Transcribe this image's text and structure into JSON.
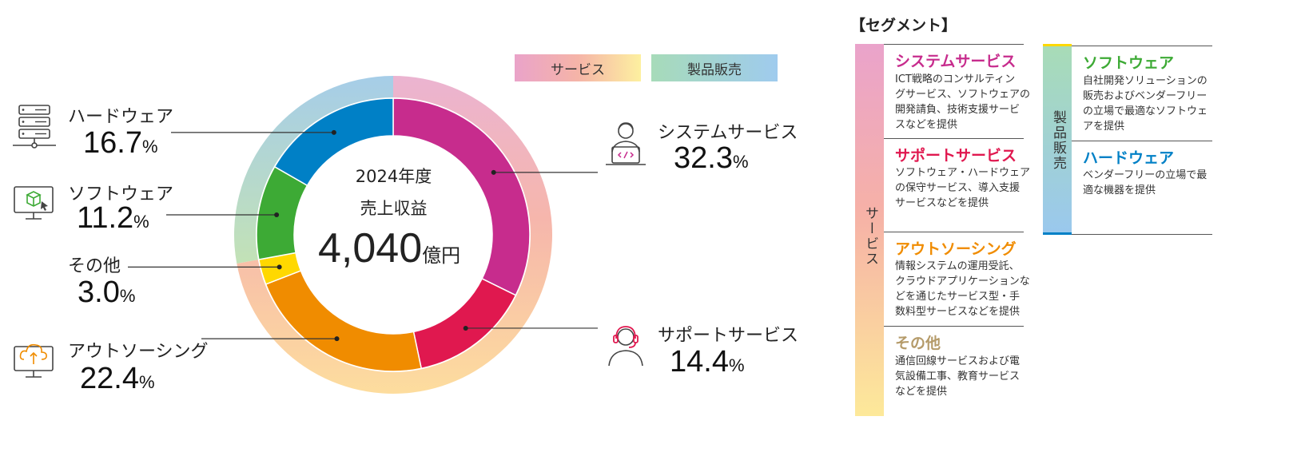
{
  "colors": {
    "system": "#c72c8d",
    "support": "#e0184f",
    "outsourcing": "#f08c00",
    "other": "#ffd800",
    "software": "#3daa35",
    "hardware": "#0080c6",
    "title_system": "#c72c8d",
    "title_support": "#e0184f",
    "title_outsourcing": "#f08c00",
    "title_other": "#b59b6a",
    "title_software": "#3daa35",
    "title_hardware": "#0080c6"
  },
  "center": {
    "year": "2024年度",
    "label": "売上収益",
    "amount": "4,040",
    "unit": "億円"
  },
  "legend": {
    "service": "サービス",
    "product": "製品販売"
  },
  "chart_data": {
    "type": "pie",
    "title": "2024年度 売上収益 4,040億円",
    "unit": "%",
    "slices": [
      {
        "name": "システムサービス",
        "value": 32.3,
        "group": "サービス"
      },
      {
        "name": "サポートサービス",
        "value": 14.4,
        "group": "サービス"
      },
      {
        "name": "アウトソーシング",
        "value": 22.4,
        "group": "サービス"
      },
      {
        "name": "その他",
        "value": 3.0,
        "group": "サービス"
      },
      {
        "name": "ソフトウェア",
        "value": 11.2,
        "group": "製品販売"
      },
      {
        "name": "ハードウェア",
        "value": 16.7,
        "group": "製品販売"
      }
    ],
    "groups": [
      {
        "name": "サービス",
        "value": 72.1
      },
      {
        "name": "製品販売",
        "value": 27.9
      }
    ]
  },
  "labels": {
    "system": {
      "name": "システムサービス",
      "value": "32.3",
      "unit": "%"
    },
    "support": {
      "name": "サポートサービス",
      "value": "14.4",
      "unit": "%"
    },
    "outsourcing": {
      "name": "アウトソーシング",
      "value": "22.4",
      "unit": "%"
    },
    "other": {
      "name": "その他",
      "value": "3.0",
      "unit": "%"
    },
    "software": {
      "name": "ソフトウェア",
      "value": "11.2",
      "unit": "%"
    },
    "hardware": {
      "name": "ハードウェア",
      "value": "16.7",
      "unit": "%"
    }
  },
  "segments": {
    "heading": "【セグメント】",
    "service_label": "サービス",
    "product_label": "製品販売",
    "service_items": [
      {
        "title": "システムサービス",
        "desc": [
          "ICT戦略のコンサルティン",
          "グサービス、ソフトウェアの",
          "開発請負、技術支援サービ",
          "スなどを提供"
        ]
      },
      {
        "title": "サポートサービス",
        "desc": [
          "ソフトウェア・ハードウェア",
          "の保守サービス、導入支援",
          "サービスなどを提供"
        ]
      },
      {
        "title": "アウトソーシング",
        "desc": [
          "情報システムの運用受託、",
          "クラウドアプリケーションな",
          "どを通じたサービス型・手",
          "数料型サービスなどを提供"
        ]
      },
      {
        "title": "その他",
        "desc": [
          "通信回線サービスおよび電",
          "気設備工事、教育サービス",
          "などを提供"
        ]
      }
    ],
    "product_items": [
      {
        "title": "ソフトウェア",
        "desc": [
          "自社開発ソリューションの",
          "販売およびベンダーフリー",
          "の立場で最適なソフトウェ",
          "アを提供"
        ]
      },
      {
        "title": "ハードウェア",
        "desc": [
          "ベンダーフリーの立場で最",
          "適な機器を提供"
        ]
      }
    ]
  },
  "icons": {
    "system": "developer-laptop-icon",
    "support": "headset-operator-icon",
    "hardware": "server-rack-icon",
    "software": "monitor-package-icon",
    "outsourcing": "cloud-upload-monitor-icon"
  }
}
